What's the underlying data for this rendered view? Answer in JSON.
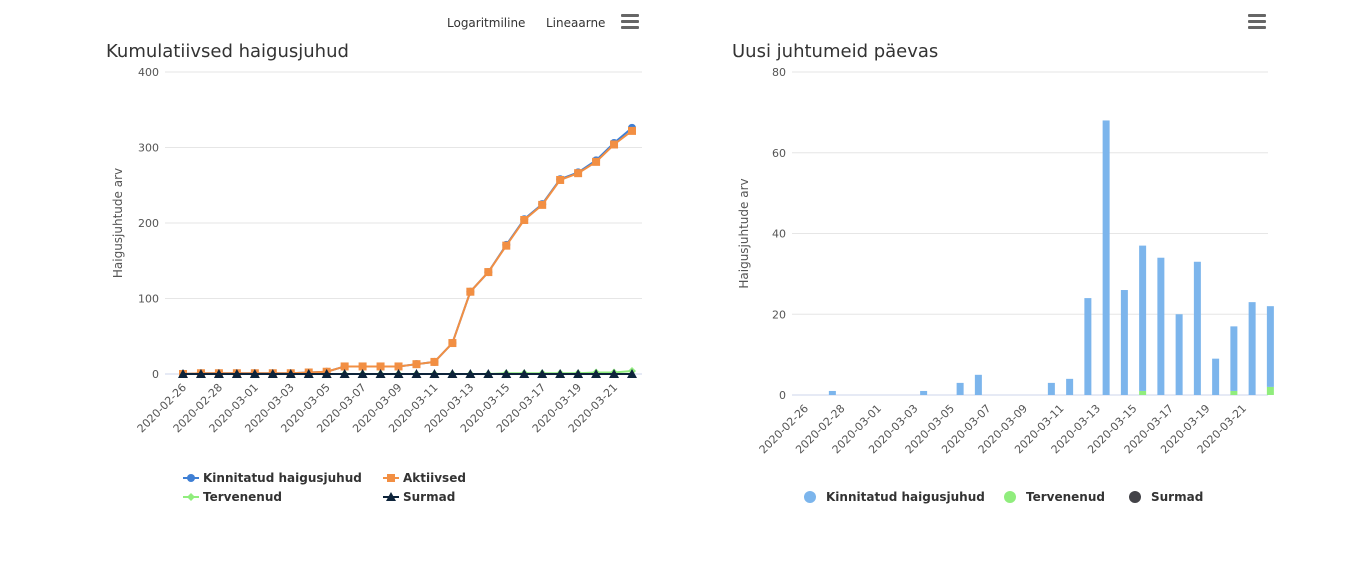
{
  "controls": [
    "Logaritmiline",
    "Lineaarne"
  ],
  "chart_data": [
    {
      "type": "line",
      "title": "Kumulatiivsed haigusjuhud",
      "y_label": "Haigusjuhtude arv",
      "categories": [
        "2020-02-26",
        null,
        "2020-02-28",
        null,
        "2020-03-01",
        null,
        "2020-03-03",
        null,
        "2020-03-05",
        null,
        "2020-03-07",
        null,
        "2020-03-09",
        null,
        "2020-03-11",
        null,
        "2020-03-13",
        null,
        "2020-03-15",
        null,
        "2020-03-17",
        null,
        "2020-03-19",
        null,
        "2020-03-21",
        null
      ],
      "ylim": [
        0,
        400
      ],
      "yticks": [
        0,
        100,
        200,
        300,
        400
      ],
      "grid": true,
      "legend": "bottom",
      "series": [
        {
          "name": "Kinnitatud haigusjuhud",
          "color": "#3f7fd4",
          "marker": "circle",
          "values": [
            0,
            1,
            1,
            1,
            1,
            1,
            1,
            2,
            3,
            10,
            10,
            10,
            10,
            13,
            16,
            41,
            109,
            135,
            171,
            205,
            225,
            258,
            267,
            283,
            306,
            326
          ]
        },
        {
          "name": "Tervenenud",
          "color": "#90ed7d",
          "marker": "diamond",
          "values": [
            0,
            0,
            0,
            0,
            0,
            0,
            0,
            0,
            0,
            0,
            0,
            0,
            0,
            0,
            0,
            0,
            0,
            0,
            1,
            1,
            1,
            1,
            1,
            2,
            2,
            4
          ]
        },
        {
          "name": "Aktiivsed",
          "color": "#f28f43",
          "marker": "square",
          "values": [
            0,
            1,
            1,
            1,
            1,
            1,
            1,
            2,
            3,
            10,
            10,
            10,
            10,
            13,
            16,
            41,
            109,
            135,
            170,
            204,
            224,
            257,
            266,
            281,
            304,
            322
          ]
        },
        {
          "name": "Surmad",
          "color": "#0d233a",
          "marker": "triangle",
          "values": [
            0,
            0,
            0,
            0,
            0,
            0,
            0,
            0,
            0,
            0,
            0,
            0,
            0,
            0,
            0,
            0,
            0,
            0,
            0,
            0,
            0,
            0,
            0,
            0,
            0,
            0
          ]
        }
      ]
    },
    {
      "type": "stacked_bar",
      "title": "Uusi juhtumeid päevas",
      "y_label": "Haigusjuhtude arv",
      "categories": [
        "2020-02-26",
        null,
        "2020-02-28",
        null,
        "2020-03-01",
        null,
        "2020-03-03",
        null,
        "2020-03-05",
        null,
        "2020-03-07",
        null,
        "2020-03-09",
        null,
        "2020-03-11",
        null,
        "2020-03-13",
        null,
        "2020-03-15",
        null,
        "2020-03-17",
        null,
        "2020-03-19",
        null,
        "2020-03-21",
        null
      ],
      "ylim": [
        0,
        80
      ],
      "yticks": [
        0,
        20,
        40,
        60,
        80
      ],
      "grid": true,
      "legend": "bottom",
      "series": [
        {
          "name": "Kinnitatud haigusjuhud",
          "color": "#7cb5ec",
          "values": [
            0,
            1,
            0,
            0,
            0,
            0,
            1,
            0,
            3,
            5,
            0,
            0,
            0,
            3,
            4,
            24,
            68,
            26,
            36,
            34,
            20,
            33,
            9,
            16,
            23,
            20
          ]
        },
        {
          "name": "Tervenenud",
          "color": "#90ed7d",
          "values": [
            0,
            0,
            0,
            0,
            0,
            0,
            0,
            0,
            0,
            0,
            0,
            0,
            0,
            0,
            0,
            0,
            0,
            0,
            1,
            0,
            0,
            0,
            0,
            1,
            0,
            2
          ]
        },
        {
          "name": "Surmad",
          "color": "#434348",
          "values": [
            0,
            0,
            0,
            0,
            0,
            0,
            0,
            0,
            0,
            0,
            0,
            0,
            0,
            0,
            0,
            0,
            0,
            0,
            0,
            0,
            0,
            0,
            0,
            0,
            0,
            0
          ]
        }
      ]
    }
  ]
}
